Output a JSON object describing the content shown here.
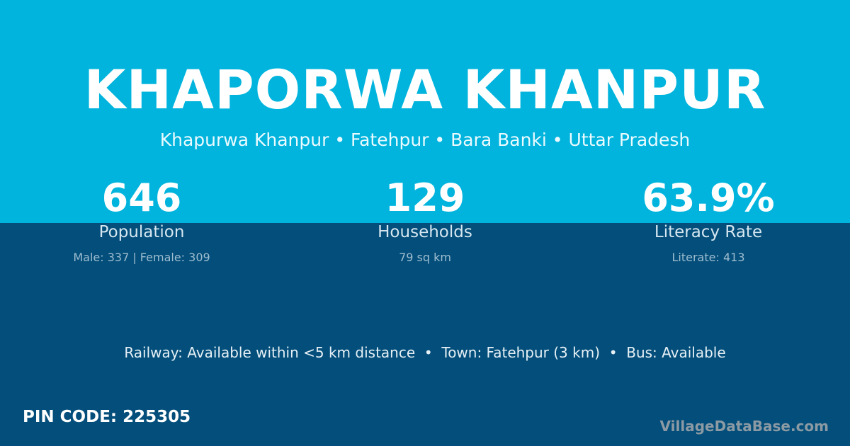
{
  "colors": {
    "top_band": "#00b4dd",
    "bottom_band": "#034e7a"
  },
  "header": {
    "title": "KHAPORWA KHANPUR",
    "subtitle": "Khapurwa Khanpur • Fatehpur • Bara Banki • Uttar Pradesh"
  },
  "stats": [
    {
      "value": "646",
      "label": "Population",
      "sub": "Male: 337 | Female: 309"
    },
    {
      "value": "129",
      "label": "Households",
      "sub": "79 sq km"
    },
    {
      "value": "63.9%",
      "label": "Literacy Rate",
      "sub": "Literate: 413"
    }
  ],
  "transport": "Railway: Available within <5 km distance  •  Town: Fatehpur (3 km)  •  Bus: Available",
  "footer": {
    "pin": "PIN CODE: 225305",
    "brand": "VillageDataBase.com"
  }
}
